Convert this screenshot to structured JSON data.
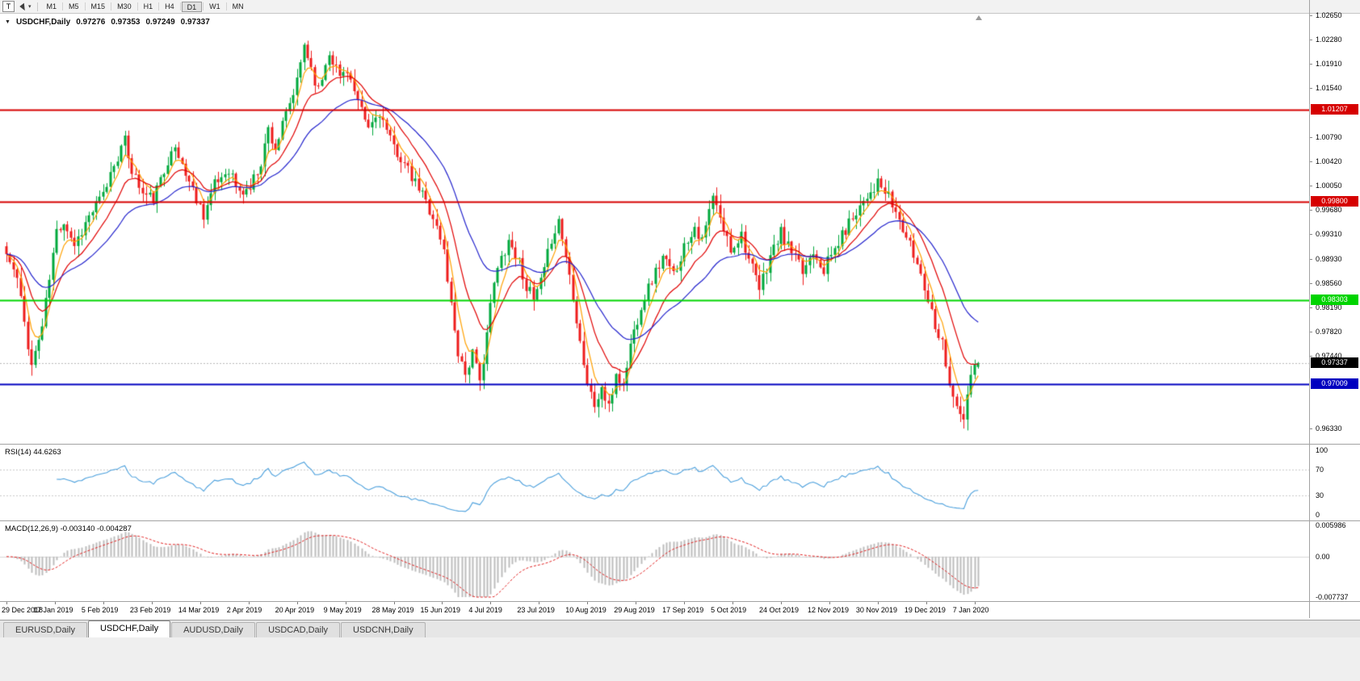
{
  "toolbar": {
    "t_button": "T",
    "dropdown_arrow": "▾",
    "timeframes": [
      "M1",
      "M5",
      "M15",
      "M30",
      "H1",
      "H4",
      "D1",
      "W1",
      "MN"
    ],
    "active_timeframe": "D1"
  },
  "main_chart": {
    "dropdown_icon": "▼",
    "title": "USDCHF,Daily",
    "open": "0.97276",
    "high": "0.97353",
    "low": "0.97249",
    "close": "0.97337",
    "price_axis_ticks": [
      "1.02650",
      "1.02280",
      "1.01910",
      "1.01540",
      "1.00790",
      "1.00420",
      "1.00050",
      "0.99680",
      "0.99310",
      "0.98930",
      "0.98560",
      "0.98190",
      "0.97820",
      "0.97440",
      "0.96330"
    ],
    "levels": [
      {
        "price": 1.01207,
        "label": "1.01207",
        "color": "#d60000",
        "kind": "resistance"
      },
      {
        "price": 0.998,
        "label": "0.99800",
        "color": "#d60000",
        "kind": "resistance"
      },
      {
        "price": 0.98303,
        "label": "0.98303",
        "color": "#00d400",
        "kind": "support"
      },
      {
        "price": 0.97009,
        "label": "0.97009",
        "color": "#0000c0",
        "kind": "support"
      }
    ],
    "bid": {
      "price": 0.97337,
      "label": "0.97337",
      "badge_color": "#000000"
    },
    "colors": {
      "up_candle": "#00a83c",
      "down_candle": "#ee1c1c",
      "bid_line": "#b8b8b8"
    }
  },
  "rsi_panel": {
    "label": "RSI(14) 44.6263",
    "value": 44.6263,
    "period": 14,
    "ticks": [
      "100",
      "70",
      "30",
      "0"
    ],
    "levels": [
      70,
      30
    ],
    "line_color": "#4a9fdc"
  },
  "macd_panel": {
    "label": "MACD(12,26,9) -0.003140 -0.004287",
    "main_value": -0.00314,
    "signal_value": -0.004287,
    "ticks": [
      "0.005986",
      "0.00",
      "-0.007737"
    ],
    "max": 0.005986,
    "min": -0.007737,
    "histogram_color": "#bdbdbd",
    "signal_color": "#e02020"
  },
  "date_axis": [
    "29 Dec 2018",
    "17 Jan 2019",
    "5 Feb 2019",
    "23 Feb 2019",
    "14 Mar 2019",
    "2 Apr 2019",
    "20 Apr 2019",
    "9 May 2019",
    "28 May 2019",
    "15 Jun 2019",
    "4 Jul 2019",
    "23 Jul 2019",
    "10 Aug 2019",
    "29 Aug 2019",
    "17 Sep 2019",
    "5 Oct 2019",
    "24 Oct 2019",
    "12 Nov 2019",
    "30 Nov 2019",
    "19 Dec 2019",
    "7 Jan 2020"
  ],
  "tabs": [
    {
      "label": "EURUSD,Daily",
      "active": false
    },
    {
      "label": "USDCHF,Daily",
      "active": true
    },
    {
      "label": "AUDUSD,Daily",
      "active": false
    },
    {
      "label": "USDCAD,Daily",
      "active": false
    },
    {
      "label": "USDCNH,Daily",
      "active": false
    }
  ],
  "chart_data": {
    "type": "candlestick",
    "symbol": "USDCHF",
    "timeframe": "Daily",
    "num_candles": 272,
    "candles_per_date_label": 13.5,
    "price_range": [
      0.961,
      1.0268
    ],
    "seed": 11,
    "x_labels": [
      "29 Dec 2018",
      "17 Jan 2019",
      "5 Feb 2019",
      "23 Feb 2019",
      "14 Mar 2019",
      "2 Apr 2019",
      "20 Apr 2019",
      "9 May 2019",
      "28 May 2019",
      "15 Jun 2019",
      "4 Jul 2019",
      "23 Jul 2019",
      "10 Aug 2019",
      "29 Aug 2019",
      "17 Sep 2019",
      "5 Oct 2019",
      "24 Oct 2019",
      "12 Nov 2019",
      "30 Nov 2019",
      "19 Dec 2019",
      "7 Jan 2020"
    ],
    "y_ticks": [
      1.0265,
      1.0228,
      1.0191,
      1.0154,
      1.0079,
      1.0042,
      1.0005,
      0.9968,
      0.9931,
      0.9893,
      0.9856,
      0.9819,
      0.9782,
      0.9744,
      0.9633
    ],
    "horizontal_lines": [
      1.01207,
      0.998,
      0.98303,
      0.97009
    ],
    "last_candle": {
      "o": 0.97276,
      "h": 0.97353,
      "l": 0.97249,
      "c": 0.97337
    },
    "close_anchors": [
      [
        0,
        0.99
      ],
      [
        3,
        0.9862
      ],
      [
        7,
        0.973
      ],
      [
        10,
        0.979
      ],
      [
        14,
        0.9935
      ],
      [
        16,
        0.9952
      ],
      [
        19,
        0.9915
      ],
      [
        23,
        0.9958
      ],
      [
        27,
        0.999
      ],
      [
        30,
        1.004
      ],
      [
        33,
        1.0072
      ],
      [
        35,
        1.003
      ],
      [
        38,
        0.9992
      ],
      [
        41,
        0.9985
      ],
      [
        44,
        1.0025
      ],
      [
        46,
        1.0066
      ],
      [
        49,
        1.0038
      ],
      [
        52,
        0.9998
      ],
      [
        55,
        0.9962
      ],
      [
        58,
        1.0005
      ],
      [
        62,
        1.0032
      ],
      [
        65,
        0.9992
      ],
      [
        68,
        1.0002
      ],
      [
        71,
        1.0042
      ],
      [
        73,
        1.0092
      ],
      [
        75,
        1.0062
      ],
      [
        78,
        1.0112
      ],
      [
        81,
        1.0162
      ],
      [
        83,
        1.0222
      ],
      [
        85,
        1.0186
      ],
      [
        87,
        1.015
      ],
      [
        90,
        1.0212
      ],
      [
        93,
        1.0172
      ],
      [
        95,
        1.0185
      ],
      [
        98,
        1.0128
      ],
      [
        101,
        1.0092
      ],
      [
        104,
        1.0118
      ],
      [
        107,
        1.0072
      ],
      [
        110,
        1.0048
      ],
      [
        113,
        1.0015
      ],
      [
        116,
        0.9992
      ],
      [
        119,
        0.9958
      ],
      [
        122,
        0.9905
      ],
      [
        124,
        0.9822
      ],
      [
        126,
        0.9752
      ],
      [
        128,
        0.9718
      ],
      [
        130,
        0.9748
      ],
      [
        132,
        0.9702
      ],
      [
        134,
        0.9782
      ],
      [
        136,
        0.9855
      ],
      [
        138,
        0.9895
      ],
      [
        140,
        0.9922
      ],
      [
        143,
        0.9888
      ],
      [
        145,
        0.9852
      ],
      [
        147,
        0.9828
      ],
      [
        150,
        0.9872
      ],
      [
        152,
        0.9925
      ],
      [
        154,
        0.9952
      ],
      [
        156,
        0.9898
      ],
      [
        158,
        0.9838
      ],
      [
        160,
        0.9768
      ],
      [
        162,
        0.9702
      ],
      [
        164,
        0.9668
      ],
      [
        166,
        0.9695
      ],
      [
        168,
        0.9662
      ],
      [
        170,
        0.9718
      ],
      [
        172,
        0.9698
      ],
      [
        174,
        0.9762
      ],
      [
        177,
        0.9822
      ],
      [
        180,
        0.9862
      ],
      [
        183,
        0.9895
      ],
      [
        186,
        0.9868
      ],
      [
        189,
        0.9912
      ],
      [
        192,
        0.9945
      ],
      [
        194,
        0.9918
      ],
      [
        197,
        0.9988
      ],
      [
        199,
        0.9952
      ],
      [
        202,
        0.9908
      ],
      [
        205,
        0.9932
      ],
      [
        207,
        0.9892
      ],
      [
        210,
        0.9845
      ],
      [
        213,
        0.9898
      ],
      [
        216,
        0.9932
      ],
      [
        219,
        0.9902
      ],
      [
        222,
        0.9872
      ],
      [
        225,
        0.9908
      ],
      [
        228,
        0.9878
      ],
      [
        231,
        0.9908
      ],
      [
        234,
        0.9938
      ],
      [
        237,
        0.9968
      ],
      [
        240,
        0.9992
      ],
      [
        243,
        1.0008
      ],
      [
        246,
        0.9986
      ],
      [
        249,
        0.9952
      ],
      [
        252,
        0.9912
      ],
      [
        255,
        0.9872
      ],
      [
        257,
        0.9832
      ],
      [
        259,
        0.9795
      ],
      [
        261,
        0.9765
      ],
      [
        263,
        0.9705
      ],
      [
        265,
        0.9662
      ],
      [
        267,
        0.9645
      ],
      [
        268,
        0.9682
      ],
      [
        269,
        0.9718
      ],
      [
        270,
        0.9726
      ],
      [
        271,
        0.97337
      ]
    ],
    "moving_averages": [
      {
        "type": "ema",
        "period": 5,
        "color": "#ffa000"
      },
      {
        "type": "ema",
        "period": 13,
        "color": "#e00000"
      },
      {
        "type": "ema",
        "period": 30,
        "color": "#2222cc"
      }
    ],
    "indicators": [
      {
        "name": "RSI",
        "period": 14,
        "current": 44.6263
      },
      {
        "name": "MACD",
        "fast": 12,
        "slow": 26,
        "signal": 9,
        "current_main": -0.00314,
        "current_signal": -0.004287
      }
    ]
  }
}
